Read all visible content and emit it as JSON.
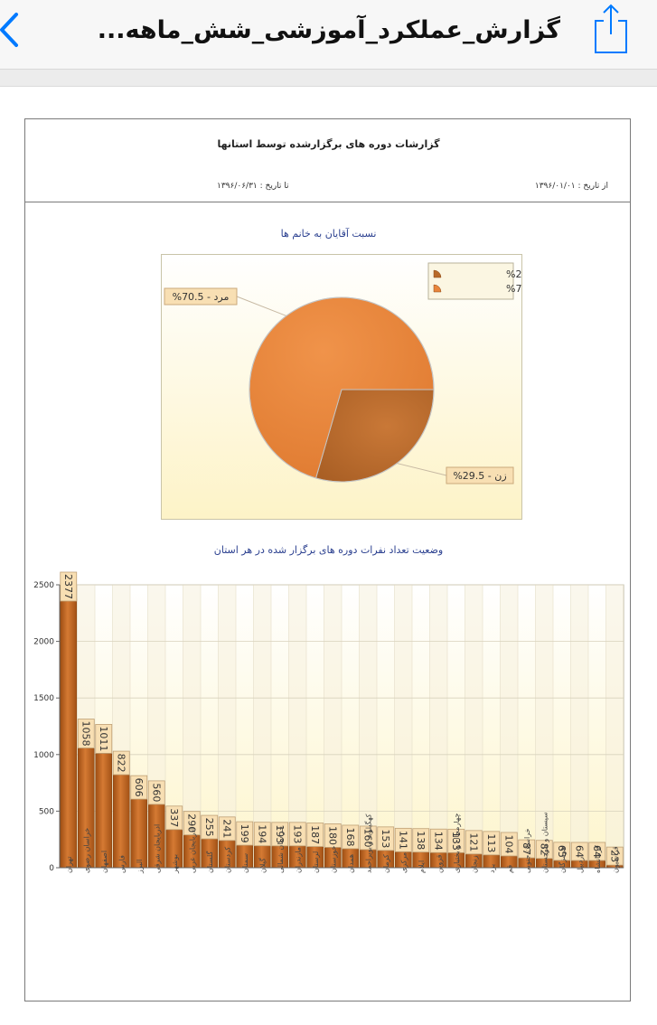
{
  "header": {
    "title": "گزارش_عملکرد_آموزشی_شش_ماهه...",
    "back_icon": "chevron-left-icon",
    "share_icon": "share-icon",
    "accent_color": "#007aff"
  },
  "report": {
    "title": "گزارشات  دوره های برگزارشده توسط استانها",
    "from_date": "از تاریخ : ۱۳۹۶/۰۱/۰۱",
    "to_date": "تا تاریخ : ۱۳۹۶/۰۶/۳۱"
  },
  "chart_data": [
    {
      "type": "pie",
      "title": "نسبت آقایان به خانم ها",
      "slices": [
        {
          "label": "زن",
          "value": 29.5,
          "text": "زن - 29.5%",
          "color": "#b86a2a"
        },
        {
          "label": "مرد",
          "value": 70.5,
          "text": "مرد - 70.5%",
          "color": "#e8843a"
        }
      ],
      "legend": "top-right"
    },
    {
      "type": "bar",
      "title": "وضعیت تعداد نفرات دوره های برگزار شده در هر استان",
      "categories": [
        "تهران",
        "خراسان رضوی",
        "اصفهان",
        "فارس",
        "البرز",
        "اذربایجان شرقی",
        "بوشهر",
        "اذربایجان غربی",
        "گلستان",
        "کردستان",
        "سمنان",
        "گیلان",
        "خراسان شمالی",
        "مازندران",
        "لرستان",
        "خوزستان",
        "همدان",
        "کهگیلویه و بویراحمد",
        "کرمان",
        "مرکزی",
        "ایلام",
        "قزوین",
        "چهارمحال و بختیاری",
        "زنجان",
        "یزد",
        "قم",
        "خراسان جنوبی",
        "سیستان و بلوچستان",
        "هرمزگان",
        "اردبیل",
        "کرمانشاه",
        "قزاسیون"
      ],
      "values": [
        2377,
        1058,
        1011,
        822,
        606,
        560,
        337,
        290,
        255,
        241,
        199,
        194,
        193,
        193,
        187,
        180,
        168,
        160,
        153,
        141,
        138,
        134,
        133,
        121,
        113,
        104,
        87,
        82,
        65,
        64,
        64,
        23
      ],
      "ylim": [
        0,
        2500
      ],
      "yticks": [
        "0",
        "500",
        "1000",
        "1500",
        "2000",
        "2500"
      ],
      "grid": true,
      "bar_color": "#c2641f"
    }
  ]
}
